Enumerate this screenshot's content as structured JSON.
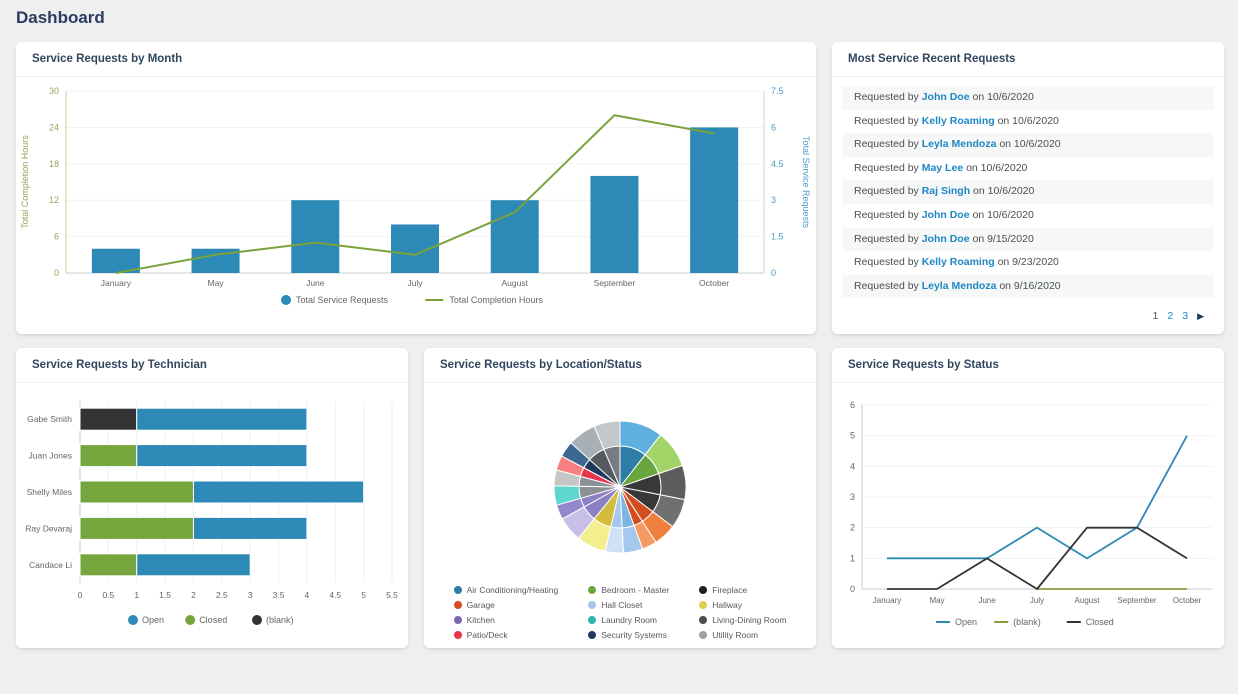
{
  "page": {
    "title": "Dashboard"
  },
  "cards": {
    "month": {
      "title": "Service Requests by Month"
    },
    "recent": {
      "title": "Most Service Recent Requests",
      "row_prefix": "Requested by",
      "row_infix": "on",
      "rows": [
        {
          "name": "John Doe",
          "date": "10/6/2020"
        },
        {
          "name": "Kelly Roaming",
          "date": "10/6/2020"
        },
        {
          "name": "Leyla Mendoza",
          "date": "10/6/2020"
        },
        {
          "name": "May Lee",
          "date": "10/6/2020"
        },
        {
          "name": "Raj Singh",
          "date": "10/6/2020"
        },
        {
          "name": "John Doe",
          "date": "10/6/2020"
        },
        {
          "name": "John Doe",
          "date": "9/15/2020"
        },
        {
          "name": "Kelly Roaming",
          "date": "9/23/2020"
        },
        {
          "name": "Leyla Mendoza",
          "date": "9/16/2020"
        }
      ],
      "pagination": {
        "pages": [
          "1",
          "2",
          "3"
        ],
        "current": "1",
        "next": "▶"
      }
    },
    "technician": {
      "title": "Service Requests by Technician"
    },
    "location": {
      "title": "Service Requests by Location/Status"
    },
    "status": {
      "title": "Service Requests by Status"
    }
  },
  "chart_data": [
    {
      "type": "bar",
      "title": "Service Requests by Month",
      "categories": [
        "January",
        "May",
        "June",
        "July",
        "August",
        "September",
        "October"
      ],
      "bars": {
        "name": "Total Service Requests",
        "axis": "right",
        "color": "#2d89b5",
        "values": [
          1,
          1,
          3,
          2,
          3,
          4,
          6
        ]
      },
      "line": {
        "name": "Total Completion Hours",
        "axis": "left",
        "color": "#7aa33c",
        "values": [
          0,
          3,
          5,
          3,
          10,
          26,
          23
        ]
      },
      "left_axis": {
        "label": "Total Completion Hours",
        "color": "#93a756",
        "min": 0,
        "max": 30,
        "ticks": [
          0,
          6,
          12,
          18,
          24,
          30
        ]
      },
      "right_axis": {
        "label": "Total Service Requests",
        "color": "#4a9cc6",
        "min": 0,
        "max": 7.5,
        "ticks": [
          0,
          1.5,
          3,
          4.5,
          6,
          7.5
        ]
      },
      "legend_position": "bottom",
      "grid": true
    },
    {
      "type": "bar",
      "title": "Service Requests by Technician",
      "orientation": "horizontal",
      "categories": [
        "Gabe Smith",
        "Juan Jones",
        "Shelly Miles",
        "Ray Devaraj",
        "Candace Li"
      ],
      "rows": [
        {
          "segments": [
            {
              "status": "(blank)",
              "value": 1
            },
            {
              "status": "Open",
              "value": 3
            }
          ]
        },
        {
          "segments": [
            {
              "status": "Closed",
              "value": 1
            },
            {
              "status": "Open",
              "value": 3
            }
          ]
        },
        {
          "segments": [
            {
              "status": "Closed",
              "value": 2
            },
            {
              "status": "Open",
              "value": 3
            }
          ]
        },
        {
          "segments": [
            {
              "status": "Closed",
              "value": 2
            },
            {
              "status": "Open",
              "value": 2
            }
          ]
        },
        {
          "segments": [
            {
              "status": "Closed",
              "value": 1
            },
            {
              "status": "Open",
              "value": 2
            }
          ]
        }
      ],
      "status_colors": {
        "Open": "#2d89b5",
        "Closed": "#76a53d",
        "(blank)": "#333333"
      },
      "xticks": [
        "0",
        "0.5",
        "1",
        "1.5",
        "2",
        "2.5",
        "3",
        "3.5",
        "4",
        "4.5",
        "5",
        "5.5"
      ],
      "xmax": 5.5,
      "legend": [
        "Open",
        "Closed",
        "(blank)"
      ],
      "legend_position": "bottom",
      "grid": true
    },
    {
      "type": "pie",
      "title": "Service Requests by Location/Status",
      "rings": "inner pie by status shade, outer ring lighter shade",
      "segments": [
        {
          "outer": "#5fb0e0",
          "inner": "#2e7da6",
          "deg": 38
        },
        {
          "outer": "#a2d468",
          "inner": "#69a73e",
          "deg": 33
        },
        {
          "outer": "#5d5d5d",
          "inner": "#383838",
          "deg": 30
        },
        {
          "outer": "#707070",
          "inner": "#383838",
          "deg": 26
        },
        {
          "outer": "#ef7f3f",
          "inner": "#d14e21",
          "deg": 20
        },
        {
          "outer": "#f59a62",
          "inner": "#d14e21",
          "deg": 13
        },
        {
          "outer": "#a6c8ee",
          "inner": "#7fb3e0",
          "deg": 17
        },
        {
          "outer": "#cfe0f7",
          "inner": "#a6c8ee",
          "deg": 16
        },
        {
          "outer": "#f4ef8e",
          "inner": "#d3bc39",
          "deg": 26
        },
        {
          "outer": "#c8bfe8",
          "inner": "#8d7fc4",
          "deg": 22
        },
        {
          "outer": "#9488ca",
          "inner": "#8d7fc4",
          "deg": 13
        },
        {
          "outer": "#5cd6cf",
          "inner": "#8a9096",
          "deg": 17
        },
        {
          "outer": "#c6c6c6",
          "inner": "#8a9096",
          "deg": 14
        },
        {
          "outer": "#f98080",
          "inner": "#e8374a",
          "deg": 13
        },
        {
          "outer": "#3d6892",
          "inner": "#1f3a5f",
          "deg": 14
        },
        {
          "outer": "#a9afb6",
          "inner": "#555a60",
          "deg": 25
        },
        {
          "outer": "#c2c7cc",
          "inner": "#777c82",
          "deg": 23
        }
      ],
      "legend": [
        {
          "label": "Air Conditioning/Heating",
          "color": "#2e7da6"
        },
        {
          "label": "Garage",
          "color": "#d14e21"
        },
        {
          "label": "Kitchen",
          "color": "#7b68ae"
        },
        {
          "label": "Patio/Deck",
          "color": "#e8374a"
        },
        {
          "label": "Bedroom - Master",
          "color": "#69a73e"
        },
        {
          "label": "Hall Closet",
          "color": "#a6c8ee"
        },
        {
          "label": "Laundry Room",
          "color": "#2bb5ae"
        },
        {
          "label": "Security Systems",
          "color": "#1f3a5f"
        },
        {
          "label": "Fireplace",
          "color": "#1f1f1f"
        },
        {
          "label": "Hallway",
          "color": "#e0cf4e"
        },
        {
          "label": "Living-Dining Room",
          "color": "#4d4d4d"
        },
        {
          "label": "Utility Room",
          "color": "#9aa0a5"
        }
      ],
      "legend_position": "bottom"
    },
    {
      "type": "line",
      "title": "Service Requests by Status",
      "categories": [
        "January",
        "May",
        "June",
        "July",
        "August",
        "September",
        "October"
      ],
      "series": [
        {
          "name": "Open",
          "color": "#2d89b5",
          "values": [
            1,
            1,
            1,
            2,
            1,
            2,
            5
          ]
        },
        {
          "name": "(blank)",
          "color": "#8a9a3f",
          "values": [
            null,
            null,
            null,
            0,
            0,
            0,
            0
          ]
        },
        {
          "name": "Closed",
          "color": "#333333",
          "values": [
            0,
            0,
            1,
            0,
            2,
            2,
            1
          ]
        }
      ],
      "ylim": [
        0,
        6
      ],
      "yticks": [
        0,
        1,
        2,
        3,
        4,
        5,
        6
      ],
      "legend_position": "bottom",
      "grid": true
    }
  ]
}
